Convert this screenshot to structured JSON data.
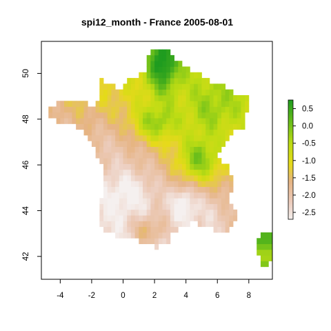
{
  "title": "spi12_month - France 2005-08-01",
  "chart_data": {
    "type": "heatmap",
    "title": "spi12_month - France 2005-08-01",
    "xlabel": "",
    "ylabel": "",
    "xlim": [
      -5.2,
      9.5
    ],
    "ylim": [
      41.0,
      51.4
    ],
    "x_ticks": [
      -4,
      -2,
      0,
      2,
      4,
      6,
      8
    ],
    "y_ticks": [
      42,
      44,
      46,
      48,
      50
    ],
    "legend": {
      "placement": "right",
      "range": [
        -2.7,
        0.75
      ],
      "ticks": [
        0.5,
        0.0,
        -0.5,
        -1.0,
        -1.5,
        -2.0,
        -2.5
      ],
      "tick_labels": [
        "0.5",
        "0.0",
        "-0.5",
        "-1.0",
        "-1.5",
        "-2.0",
        "-2.5"
      ]
    },
    "colors": {
      "high": "#1f9c1f",
      "mid_green": "#7fc41a",
      "yellow": "#e6dc1a",
      "tan": "#e6b888",
      "pink": "#efcfc3",
      "low": "#f5f0ef"
    }
  }
}
